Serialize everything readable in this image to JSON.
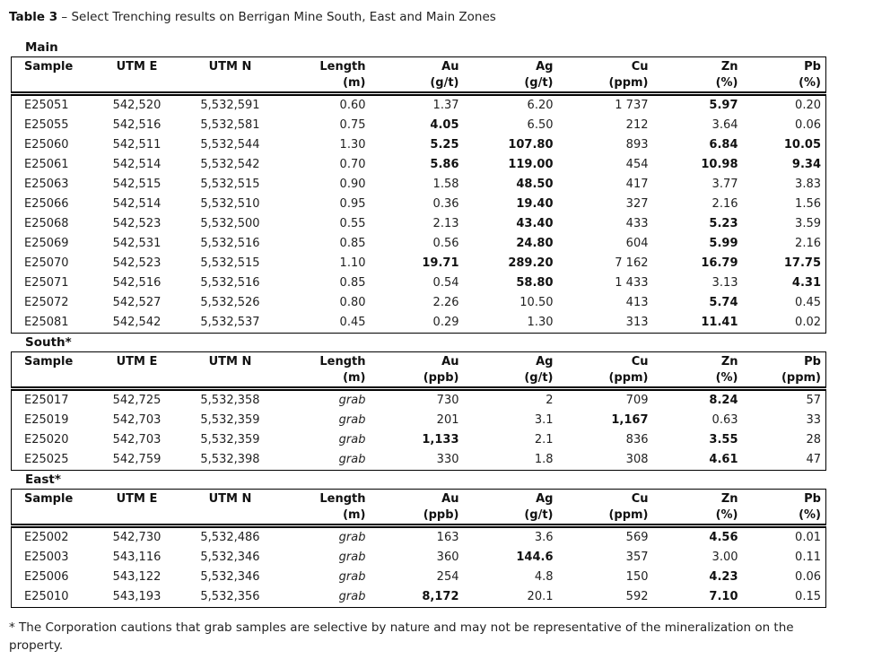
{
  "title": {
    "bold": "Table 3",
    "rest": "– Select Trenching results on Berrigan Mine South, East and Main Zones"
  },
  "aligns": [
    "l",
    "c",
    "c",
    "r",
    "r",
    "r",
    "r",
    "r",
    "r"
  ],
  "sections": [
    {
      "label": "Main",
      "columns": [
        {
          "label": "Sample",
          "unit": ""
        },
        {
          "label": "UTM E",
          "unit": ""
        },
        {
          "label": "UTM N",
          "unit": ""
        },
        {
          "label": "Length",
          "unit": "(m)"
        },
        {
          "label": "Au",
          "unit": "(g/t)"
        },
        {
          "label": "Ag",
          "unit": "(g/t)"
        },
        {
          "label": "Cu",
          "unit": "(ppm)"
        },
        {
          "label": "Zn",
          "unit": "(%)"
        },
        {
          "label": "Pb",
          "unit": "(%)"
        }
      ],
      "rows": [
        [
          "E25051",
          "542,520",
          "5,532,591",
          "0.60",
          "1.37",
          "6.20",
          "1 737",
          {
            "v": "5.97",
            "b": true
          },
          "0.20"
        ],
        [
          "E25055",
          "542,516",
          "5,532,581",
          "0.75",
          {
            "v": "4.05",
            "b": true
          },
          "6.50",
          "212",
          "3.64",
          "0.06"
        ],
        [
          "E25060",
          "542,511",
          "5,532,544",
          "1.30",
          {
            "v": "5.25",
            "b": true
          },
          {
            "v": "107.80",
            "b": true
          },
          "893",
          {
            "v": "6.84",
            "b": true
          },
          {
            "v": "10.05",
            "b": true
          }
        ],
        [
          "E25061",
          "542,514",
          "5,532,542",
          "0.70",
          {
            "v": "5.86",
            "b": true
          },
          {
            "v": "119.00",
            "b": true
          },
          "454",
          {
            "v": "10.98",
            "b": true
          },
          {
            "v": "9.34",
            "b": true
          }
        ],
        [
          "E25063",
          "542,515",
          "5,532,515",
          "0.90",
          "1.58",
          {
            "v": "48.50",
            "b": true
          },
          "417",
          "3.77",
          "3.83"
        ],
        [
          "E25066",
          "542,514",
          "5,532,510",
          "0.95",
          "0.36",
          {
            "v": "19.40",
            "b": true
          },
          "327",
          "2.16",
          "1.56"
        ],
        [
          "E25068",
          "542,523",
          "5,532,500",
          "0.55",
          "2.13",
          {
            "v": "43.40",
            "b": true
          },
          "433",
          {
            "v": "5.23",
            "b": true
          },
          "3.59"
        ],
        [
          "E25069",
          "542,531",
          "5,532,516",
          "0.85",
          "0.56",
          {
            "v": "24.80",
            "b": true
          },
          "604",
          {
            "v": "5.99",
            "b": true
          },
          "2.16"
        ],
        [
          "E25070",
          "542,523",
          "5,532,515",
          "1.10",
          {
            "v": "19.71",
            "b": true
          },
          {
            "v": "289.20",
            "b": true
          },
          "7 162",
          {
            "v": "16.79",
            "b": true
          },
          {
            "v": "17.75",
            "b": true
          }
        ],
        [
          "E25071",
          "542,516",
          "5,532,516",
          "0.85",
          "0.54",
          {
            "v": "58.80",
            "b": true
          },
          "1 433",
          "3.13",
          {
            "v": "4.31",
            "b": true
          }
        ],
        [
          "E25072",
          "542,527",
          "5,532,526",
          "0.80",
          "2.26",
          "10.50",
          "413",
          {
            "v": "5.74",
            "b": true
          },
          "0.45"
        ],
        [
          "E25081",
          "542,542",
          "5,532,537",
          "0.45",
          "0.29",
          "1.30",
          "313",
          {
            "v": "11.41",
            "b": true
          },
          "0.02"
        ]
      ]
    },
    {
      "label": "South*",
      "columns": [
        {
          "label": "Sample",
          "unit": ""
        },
        {
          "label": "UTM E",
          "unit": ""
        },
        {
          "label": "UTM N",
          "unit": ""
        },
        {
          "label": "Length",
          "unit": "(m)"
        },
        {
          "label": "Au",
          "unit": "(ppb)"
        },
        {
          "label": "Ag",
          "unit": "(g/t)"
        },
        {
          "label": "Cu",
          "unit": "(ppm)"
        },
        {
          "label": "Zn",
          "unit": "(%)"
        },
        {
          "label": "Pb",
          "unit": "(ppm)"
        }
      ],
      "rows": [
        [
          "E25017",
          "542,725",
          "5,532,358",
          {
            "v": "grab",
            "i": true
          },
          "730",
          "2",
          "709",
          {
            "v": "8.24",
            "b": true
          },
          "57"
        ],
        [
          "E25019",
          "542,703",
          "5,532,359",
          {
            "v": "grab",
            "i": true
          },
          "201",
          "3.1",
          {
            "v": "1,167",
            "b": true
          },
          "0.63",
          "33"
        ],
        [
          "E25020",
          "542,703",
          "5,532,359",
          {
            "v": "grab",
            "i": true
          },
          {
            "v": "1,133",
            "b": true
          },
          "2.1",
          "836",
          {
            "v": "3.55",
            "b": true
          },
          "28"
        ],
        [
          "E25025",
          "542,759",
          "5,532,398",
          {
            "v": "grab",
            "i": true
          },
          "330",
          "1.8",
          "308",
          {
            "v": "4.61",
            "b": true
          },
          "47"
        ]
      ]
    },
    {
      "label": "East*",
      "columns": [
        {
          "label": "Sample",
          "unit": ""
        },
        {
          "label": "UTM E",
          "unit": ""
        },
        {
          "label": "UTM N",
          "unit": ""
        },
        {
          "label": "Length",
          "unit": "(m)"
        },
        {
          "label": "Au",
          "unit": "(ppb)"
        },
        {
          "label": "Ag",
          "unit": "(g/t)"
        },
        {
          "label": "Cu",
          "unit": "(ppm)"
        },
        {
          "label": "Zn",
          "unit": "(%)"
        },
        {
          "label": "Pb",
          "unit": "(%)"
        }
      ],
      "rows": [
        [
          "E25002",
          "542,730",
          "5,532,486",
          {
            "v": "grab",
            "i": true
          },
          "163",
          "3.6",
          "569",
          {
            "v": "4.56",
            "b": true
          },
          "0.01"
        ],
        [
          "E25003",
          "543,116",
          "5,532,346",
          {
            "v": "grab",
            "i": true
          },
          "360",
          {
            "v": "144.6",
            "b": true
          },
          "357",
          "3.00",
          "0.11"
        ],
        [
          "E25006",
          "543,122",
          "5,532,346",
          {
            "v": "grab",
            "i": true
          },
          "254",
          "4.8",
          "150",
          {
            "v": "4.23",
            "b": true
          },
          "0.06"
        ],
        [
          "E25010",
          "543,193",
          "5,532,356",
          {
            "v": "grab",
            "i": true
          },
          {
            "v": "8,172",
            "b": true
          },
          "20.1",
          "592",
          {
            "v": "7.10",
            "b": true
          },
          "0.15"
        ]
      ]
    }
  ],
  "footnote": "* The Corporation cautions that grab samples are selective by nature and may not be representative of the mineralization on the property."
}
